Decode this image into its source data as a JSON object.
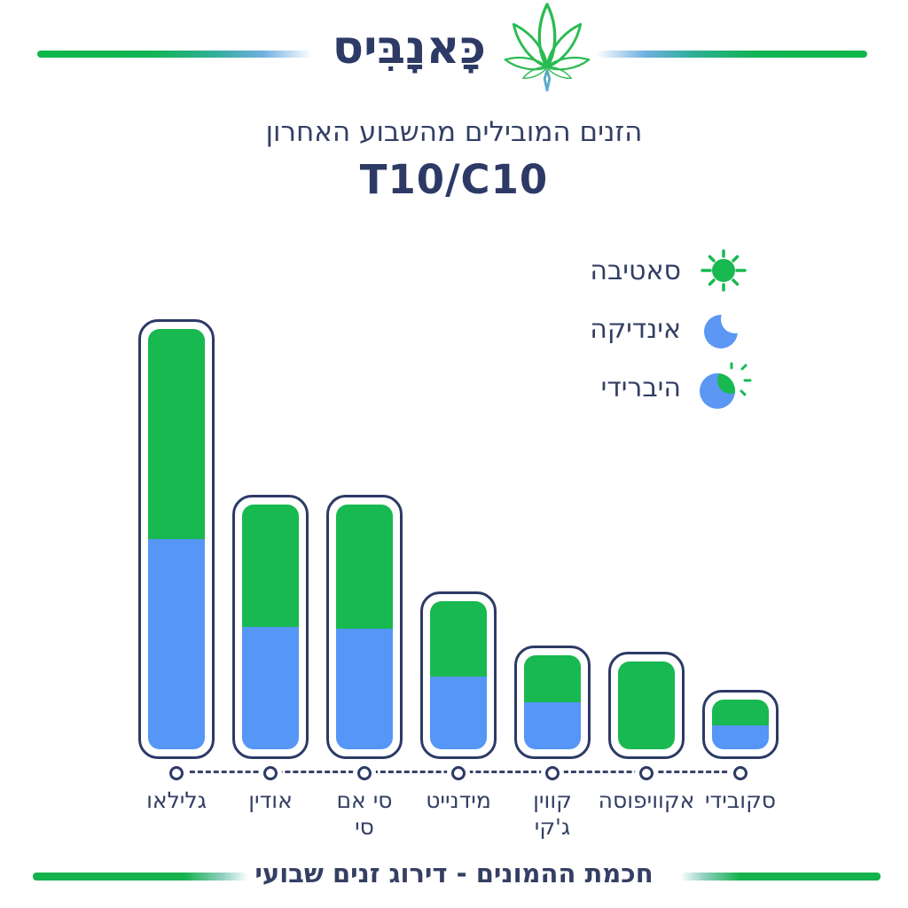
{
  "header": {
    "logo_text": "כָּאנָבִּיס",
    "logo_icon": "cannabis-leaf-icon",
    "accent_green": "#12b44c",
    "accent_blue": "#6fb0e8"
  },
  "title": {
    "line1": "הזנים המובילים מהשבוע האחרון",
    "line2": "T10/C10"
  },
  "legend": {
    "items": [
      {
        "label": "סאטיבה",
        "icon": "sun-icon",
        "color": "#17b950"
      },
      {
        "label": "אינדיקה",
        "icon": "moon-icon",
        "color": "#5596f6"
      },
      {
        "label": "היברידי",
        "icon": "hybrid-sun-moon-icon",
        "colors": [
          "#17b950",
          "#5596f6"
        ]
      }
    ]
  },
  "chart_data": {
    "type": "bar",
    "stacked": true,
    "orientation": "vertical",
    "grid": false,
    "value_axis_visible": false,
    "legend_position": "top-right",
    "units": "relative popularity (tallest bar = 100)",
    "ylim": [
      0,
      100
    ],
    "title": "הזנים המובילים מהשבוע האחרון T10/C10",
    "categories": [
      "גלילאו",
      "אודין",
      "סי אם סי",
      "מידנייט",
      "קווין ג'קי",
      "אקוויפוסה",
      "סקובידי"
    ],
    "series": [
      {
        "name": "סאטיבה",
        "color": "#17b950",
        "values": [
          50,
          29,
          29.5,
          17.8,
          11,
          20.5,
          6
        ]
      },
      {
        "name": "אינדיקה",
        "color": "#5596f6",
        "values": [
          50,
          29,
          28.5,
          17.2,
          11,
          0,
          5.5
        ]
      }
    ],
    "bars": [
      {
        "label": "גלילאו",
        "lines": [
          "גלילאו"
        ],
        "total": 100,
        "sativa": 50,
        "indica": 50
      },
      {
        "label": "אודין",
        "lines": [
          "אודין"
        ],
        "total": 58,
        "sativa": 29,
        "indica": 29
      },
      {
        "label": "סי אם סי",
        "lines": [
          "סי אם",
          "סי"
        ],
        "total": 58,
        "sativa": 29.5,
        "indica": 28.5
      },
      {
        "label": "מידנייט",
        "lines": [
          "מידנייט"
        ],
        "total": 35,
        "sativa": 17.8,
        "indica": 17.2
      },
      {
        "label": "קווין ג'קי",
        "lines": [
          "קווין",
          "ג'קי"
        ],
        "total": 22,
        "sativa": 11,
        "indica": 11
      },
      {
        "label": "אקוויפוסה",
        "lines": [
          "אקוויפוסה"
        ],
        "total": 20.5,
        "sativa": 20.5,
        "indica": 0
      },
      {
        "label": "סקובידי",
        "lines": [
          "סקובידי"
        ],
        "total": 11.5,
        "sativa": 6,
        "indica": 5.5
      }
    ]
  },
  "footer": {
    "text": "חכמת ההמונים - דירוג זנים שבועי"
  },
  "colors": {
    "navy": "#2d3a66",
    "green": "#17b950",
    "blue": "#5596f6"
  }
}
